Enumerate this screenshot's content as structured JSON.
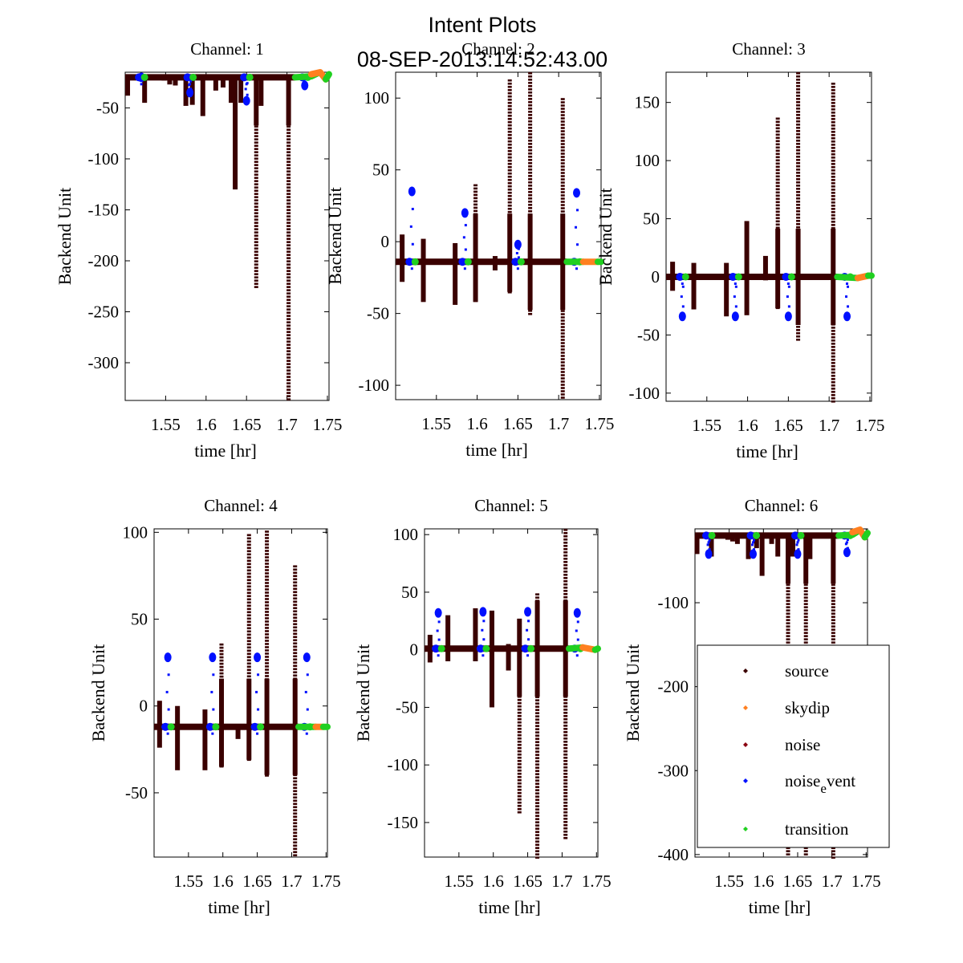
{
  "figure": {
    "title": "Intent Plots",
    "subtitle": "08-SEP-2013:14:52:43.00"
  },
  "legend": {
    "placement": "lower-right of Channel 6 panel",
    "entries": [
      {
        "label": "source",
        "color": "#3a0000"
      },
      {
        "label": "skydip",
        "color": "#ff8020"
      },
      {
        "label": "noise",
        "color": "#8b0010"
      },
      {
        "label": "noise_event",
        "label_display": "noise",
        "label_sub": "e",
        "label_tail": "vent",
        "color": "#0010ff"
      },
      {
        "label": "transition",
        "color": "#20d020"
      }
    ]
  },
  "chart_data": [
    {
      "type": "scatter",
      "title": "Channel: 1",
      "xlabel": "time [hr]",
      "ylabel": "Backend Unit",
      "xlim": [
        1.5,
        1.752
      ],
      "ylim": [
        -337,
        -15
      ],
      "xticks": [
        1.55,
        1.6,
        1.65,
        1.7,
        1.75
      ],
      "xtick_labels": [
        "1.55",
        "1.6",
        "1.65",
        "1.7",
        "1.75"
      ],
      "yticks": [
        -50,
        -100,
        -150,
        -200,
        -250,
        -300
      ],
      "ytick_labels": [
        "-50",
        "-100",
        "-150",
        "-200",
        "-250",
        "-300"
      ],
      "baseline": -20,
      "noise_event_centers": [
        1.52,
        1.58,
        1.65,
        1.722
      ],
      "noise_event_offsets": [
        -20,
        -35,
        -43,
        -28
      ],
      "source_spikes": [
        [
          1.503,
          -38
        ],
        [
          1.524,
          -45
        ],
        [
          1.548,
          -22
        ],
        [
          1.555,
          -27
        ],
        [
          1.562,
          -28
        ],
        [
          1.575,
          -48
        ],
        [
          1.583,
          -47
        ],
        [
          1.596,
          -58
        ],
        [
          1.612,
          -33
        ],
        [
          1.621,
          -30
        ],
        [
          1.631,
          -45
        ],
        [
          1.636,
          -130
        ],
        [
          1.643,
          -45
        ],
        [
          1.662,
          -225
        ],
        [
          1.668,
          -48
        ],
        [
          1.702,
          -337
        ]
      ],
      "transition_segment": [
        [
          1.71,
          -20
        ],
        [
          1.73,
          -19
        ],
        [
          1.738,
          -16
        ]
      ],
      "skydip_segment": [
        [
          1.73,
          -17
        ],
        [
          1.741,
          -15
        ],
        [
          1.748,
          -22
        ]
      ],
      "transition_tail": [
        [
          1.748,
          -22
        ],
        [
          1.752,
          -17
        ]
      ]
    },
    {
      "type": "scatter",
      "title": "Channel: 2",
      "xlabel": "time [hr]",
      "ylabel": "Backend Unit",
      "xlim": [
        1.5,
        1.752
      ],
      "ylim": [
        -110,
        118
      ],
      "xticks": [
        1.55,
        1.6,
        1.65,
        1.7,
        1.75
      ],
      "xtick_labels": [
        "1.55",
        "1.6",
        "1.65",
        "1.7",
        "1.75"
      ],
      "yticks": [
        100,
        50,
        0,
        -50,
        -100
      ],
      "ytick_labels": [
        "100",
        "50",
        "0",
        "-50",
        "-100"
      ],
      "baseline": -14,
      "noise_event_centers": [
        1.52,
        1.585,
        1.65,
        1.722
      ],
      "noise_event_offsets": [
        35,
        20,
        -2,
        34
      ],
      "source_spikes": [
        [
          1.508,
          5,
          -28
        ],
        [
          1.534,
          2,
          -42
        ],
        [
          1.573,
          -1,
          -44
        ],
        [
          1.598,
          40,
          -42
        ],
        [
          1.622,
          -10,
          -20
        ],
        [
          1.64,
          113,
          -35
        ],
        [
          1.665,
          118,
          -50
        ],
        [
          1.705,
          100,
          -110
        ]
      ],
      "transition_segment": [
        [
          1.71,
          -14
        ],
        [
          1.73,
          -14
        ]
      ],
      "skydip_segment": [
        [
          1.73,
          -14
        ],
        [
          1.748,
          -14
        ]
      ],
      "transition_tail": [
        [
          1.748,
          -14
        ],
        [
          1.752,
          -14
        ]
      ]
    },
    {
      "type": "scatter",
      "title": "Channel: 3",
      "xlabel": "time [hr]",
      "ylabel": "Backend Unit",
      "xlim": [
        1.5,
        1.752
      ],
      "ylim": [
        -107,
        176
      ],
      "xticks": [
        1.55,
        1.6,
        1.65,
        1.7,
        1.75
      ],
      "xtick_labels": [
        "1.55",
        "1.6",
        "1.65",
        "1.7",
        "1.75"
      ],
      "yticks": [
        150,
        100,
        50,
        0,
        -50,
        -100
      ],
      "ytick_labels": [
        "150",
        "100",
        "50",
        "0",
        "-50",
        "-100"
      ],
      "baseline": 0,
      "noise_event_centers": [
        1.52,
        1.585,
        1.65,
        1.722
      ],
      "noise_event_offsets": [
        -34,
        -34,
        -34,
        -34
      ],
      "source_spikes": [
        [
          1.508,
          13,
          -12
        ],
        [
          1.534,
          12,
          -28
        ],
        [
          1.574,
          12,
          -34
        ],
        [
          1.599,
          48,
          -33
        ],
        [
          1.622,
          18,
          -3
        ],
        [
          1.637,
          137,
          -27
        ],
        [
          1.662,
          176,
          -55
        ],
        [
          1.705,
          167,
          -107
        ]
      ],
      "transition_segment": [
        [
          1.71,
          0
        ],
        [
          1.735,
          -1
        ]
      ],
      "skydip_segment": [
        [
          1.735,
          -1
        ],
        [
          1.748,
          1
        ]
      ],
      "transition_tail": [
        [
          1.748,
          1
        ],
        [
          1.752,
          1
        ]
      ]
    },
    {
      "type": "scatter",
      "title": "Channel: 4",
      "xlabel": "time [hr]",
      "ylabel": "Backend Unit",
      "xlim": [
        1.5,
        1.752
      ],
      "ylim": [
        -87,
        102
      ],
      "xticks": [
        1.55,
        1.6,
        1.65,
        1.7,
        1.75
      ],
      "xtick_labels": [
        "1.55",
        "1.6",
        "1.65",
        "1.7",
        "1.75"
      ],
      "yticks": [
        100,
        50,
        0,
        -50
      ],
      "ytick_labels": [
        "100",
        "50",
        "0",
        "-50"
      ],
      "baseline": -12,
      "noise_event_centers": [
        1.52,
        1.585,
        1.65,
        1.722
      ],
      "noise_event_offsets": [
        28,
        28,
        28,
        28
      ],
      "source_spikes": [
        [
          1.508,
          3,
          -24
        ],
        [
          1.534,
          0,
          -37
        ],
        [
          1.574,
          -2,
          -37
        ],
        [
          1.598,
          36,
          -35
        ],
        [
          1.622,
          -12,
          -19
        ],
        [
          1.638,
          99,
          -31
        ],
        [
          1.664,
          101,
          -40
        ],
        [
          1.705,
          81,
          -87
        ]
      ],
      "transition_segment": [
        [
          1.71,
          -12
        ],
        [
          1.735,
          -12
        ]
      ],
      "skydip_segment": [
        [
          1.735,
          -12
        ],
        [
          1.746,
          -12
        ]
      ],
      "transition_tail": [
        [
          1.746,
          -12
        ],
        [
          1.752,
          -12
        ]
      ]
    },
    {
      "type": "scatter",
      "title": "Channel: 5",
      "xlabel": "time [hr]",
      "ylabel": "Backend Unit",
      "xlim": [
        1.5,
        1.752
      ],
      "ylim": [
        -180,
        105
      ],
      "xticks": [
        1.55,
        1.6,
        1.65,
        1.7,
        1.75
      ],
      "xtick_labels": [
        "1.55",
        "1.6",
        "1.65",
        "1.7",
        "1.75"
      ],
      "yticks": [
        100,
        50,
        0,
        -50,
        -100,
        -150
      ],
      "ytick_labels": [
        "100",
        "50",
        "0",
        "-50",
        "-100",
        "-150"
      ],
      "baseline": 1,
      "noise_event_centers": [
        1.52,
        1.585,
        1.65,
        1.722
      ],
      "noise_event_offsets": [
        32,
        33,
        33,
        32
      ],
      "source_spikes": [
        [
          1.508,
          13,
          -11
        ],
        [
          1.534,
          30,
          -10
        ],
        [
          1.574,
          36,
          -10
        ],
        [
          1.598,
          34,
          -50
        ],
        [
          1.622,
          5,
          -18
        ],
        [
          1.638,
          27,
          -143
        ],
        [
          1.664,
          49,
          -180
        ],
        [
          1.705,
          105,
          -163
        ]
      ],
      "transition_segment": [
        [
          1.71,
          1
        ],
        [
          1.73,
          2
        ]
      ],
      "skydip_segment": [
        [
          1.73,
          2
        ],
        [
          1.748,
          0
        ]
      ],
      "transition_tail": [
        [
          1.748,
          0
        ],
        [
          1.752,
          1
        ]
      ]
    },
    {
      "type": "scatter",
      "title": "Channel: 6",
      "xlabel": "time [hr]",
      "ylabel": "Backend Unit",
      "xlim": [
        1.5,
        1.752
      ],
      "ylim": [
        -403,
        -12
      ],
      "xticks": [
        1.55,
        1.6,
        1.65,
        1.7,
        1.75
      ],
      "xtick_labels": [
        "1.55",
        "1.6",
        "1.65",
        "1.7",
        "1.75"
      ],
      "yticks": [
        -100,
        -200,
        -300,
        -400
      ],
      "ytick_labels": [
        "-100",
        "-200",
        "-300",
        "-400"
      ],
      "baseline": -20,
      "noise_event_centers": [
        1.52,
        1.585,
        1.65,
        1.722
      ],
      "noise_event_offsets": [
        -42,
        -42,
        -42,
        -40
      ],
      "source_spikes": [
        [
          1.503,
          -42
        ],
        [
          1.524,
          -45
        ],
        [
          1.548,
          -25
        ],
        [
          1.555,
          -27
        ],
        [
          1.562,
          -30
        ],
        [
          1.578,
          -48
        ],
        [
          1.59,
          -35
        ],
        [
          1.598,
          -68
        ],
        [
          1.612,
          -30
        ],
        [
          1.621,
          -45
        ],
        [
          1.636,
          -400
        ],
        [
          1.643,
          -45
        ],
        [
          1.662,
          -400
        ],
        [
          1.668,
          -48
        ],
        [
          1.702,
          -403
        ]
      ],
      "transition_segment": [
        [
          1.71,
          -20
        ],
        [
          1.73,
          -19
        ],
        [
          1.738,
          -15
        ]
      ],
      "skydip_segment": [
        [
          1.73,
          -16
        ],
        [
          1.741,
          -13
        ],
        [
          1.748,
          -22
        ]
      ],
      "transition_tail": [
        [
          1.748,
          -22
        ],
        [
          1.752,
          -17
        ]
      ]
    }
  ]
}
